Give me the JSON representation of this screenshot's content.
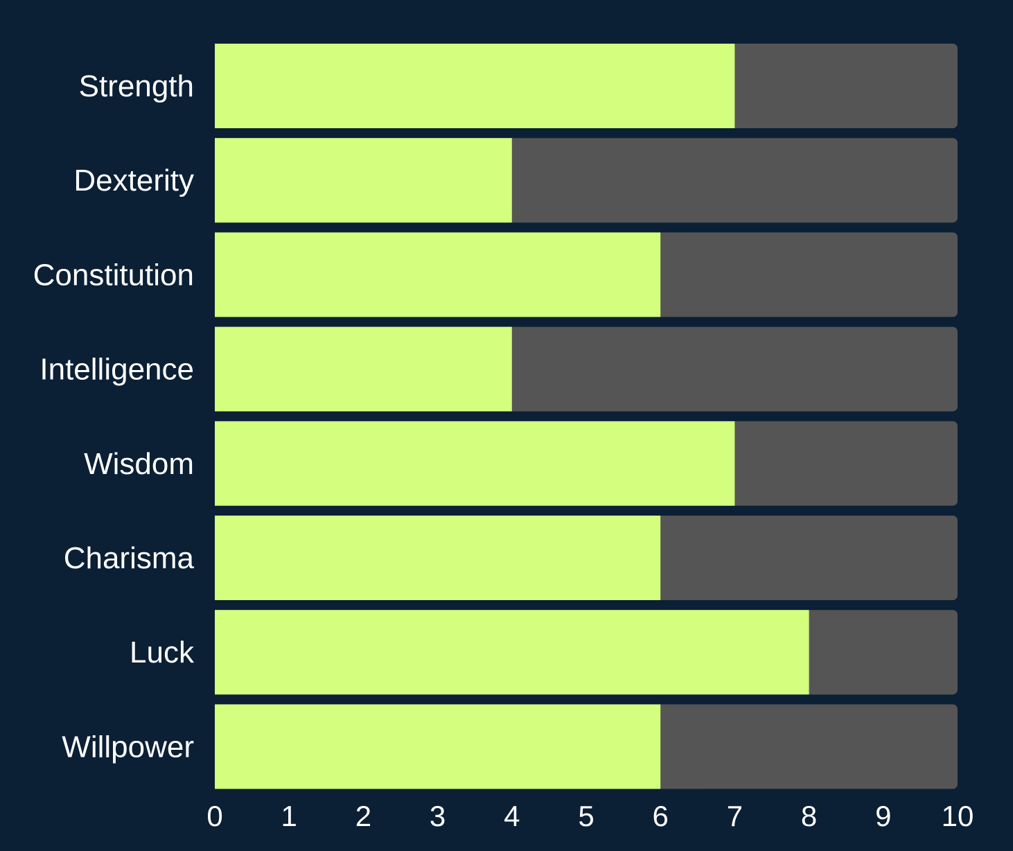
{
  "chart_data": {
    "type": "bar",
    "orientation": "horizontal",
    "stacked": true,
    "title": "",
    "xlabel": "",
    "ylabel": "",
    "categories": [
      "Strength",
      "Dexterity",
      "Constitution",
      "Intelligence",
      "Wisdom",
      "Charisma",
      "Luck",
      "Willpower"
    ],
    "values": [
      7,
      4,
      6,
      4,
      7,
      6,
      8,
      6
    ],
    "max_value": 10,
    "xlim": [
      0,
      10
    ],
    "xticks": [
      "0",
      "1",
      "2",
      "3",
      "4",
      "5",
      "6",
      "7",
      "8",
      "9",
      "10"
    ],
    "grid": false,
    "legend": "none",
    "colors": {
      "background": "#0b1f35",
      "fill": "#d4ff7e",
      "track": "#555555",
      "text": "#ffffff"
    }
  }
}
